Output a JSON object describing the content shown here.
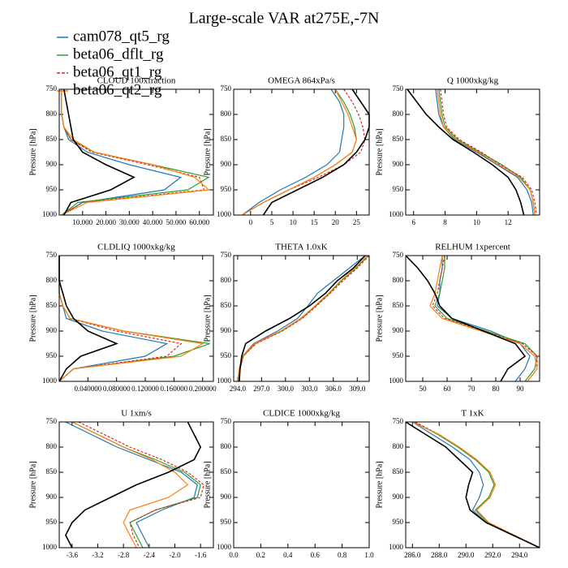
{
  "title": "Large-scale VAR at275E,-7N",
  "chart_data": [
    {
      "type": "line",
      "title": "CLOUD 100xfraction",
      "ylabel": "Pressure [hPa]",
      "y": [
        750,
        775,
        800,
        825,
        850,
        875,
        900,
        925,
        950,
        975,
        1000
      ],
      "ylim": [
        750,
        1000
      ],
      "yticks": [
        750,
        800,
        850,
        900,
        950,
        1000
      ],
      "xlim": [
        0,
        66
      ],
      "xticks": [
        {
          "value": 10,
          "label": "10.000"
        },
        {
          "value": 20,
          "label": "20.000"
        },
        {
          "value": 30,
          "label": "30.000"
        },
        {
          "value": 40,
          "label": "40.000"
        },
        {
          "value": 50,
          "label": "50.000"
        },
        {
          "value": 60,
          "label": "60.000"
        }
      ],
      "series": [
        {
          "name": "cam078_qt5_rg",
          "color": "#1f77b4",
          "values": [
            1,
            1,
            1,
            2,
            4,
            12,
            30,
            52,
            45,
            10,
            1
          ]
        },
        {
          "name": "beta06_dflt_rg",
          "color": "#2ca02c",
          "values": [
            1,
            1,
            1,
            2,
            5,
            15,
            40,
            64,
            55,
            8,
            1
          ]
        },
        {
          "name": "beta06_qt1_rg",
          "color": "#d62728",
          "dashed": true,
          "values": [
            1,
            1,
            1,
            2,
            5,
            14,
            38,
            60,
            62,
            10,
            1
          ]
        },
        {
          "name": "beta06_qt2_rg",
          "color": "#ff7f0e",
          "values": [
            1,
            1,
            1,
            2,
            6,
            15,
            40,
            58,
            64,
            12,
            1
          ]
        },
        {
          "color": "#000000",
          "values": [
            2,
            3,
            4,
            5,
            6,
            10,
            20,
            32,
            22,
            5,
            2
          ]
        }
      ]
    },
    {
      "type": "line",
      "title": "OMEGA 864xPa/s",
      "ylabel": "Pressure [hPa]",
      "y": [
        750,
        775,
        800,
        825,
        850,
        875,
        900,
        925,
        950,
        975,
        1000
      ],
      "ylim": [
        750,
        1000
      ],
      "yticks": [
        750,
        800,
        850,
        900,
        950,
        1000
      ],
      "xlim": [
        -4,
        28
      ],
      "xticks": [
        0,
        5,
        10,
        15,
        20,
        25
      ],
      "series": [
        {
          "name": "cam078_qt5_rg",
          "color": "#1f77b4",
          "values": [
            19,
            21,
            22,
            22,
            21.5,
            21,
            18,
            13,
            7,
            2,
            -2
          ]
        },
        {
          "name": "beta06_dflt_rg",
          "color": "#2ca02c",
          "values": [
            20,
            22,
            23.5,
            24.5,
            25,
            24,
            20,
            15,
            9,
            3,
            -2
          ]
        },
        {
          "name": "beta06_qt1_rg",
          "color": "#d62728",
          "dashed": true,
          "values": [
            22,
            24,
            25.5,
            26.5,
            27,
            26,
            22,
            16,
            9,
            3,
            -2
          ]
        },
        {
          "name": "beta06_qt2_rg",
          "color": "#ff7f0e",
          "values": [
            20,
            21.5,
            23,
            24,
            25,
            24,
            20,
            15,
            9,
            3,
            -2
          ]
        },
        {
          "color": "#000000",
          "values": [
            24,
            26,
            28,
            28,
            27,
            25,
            22,
            17,
            11,
            5,
            3
          ]
        }
      ]
    },
    {
      "type": "line",
      "title": "Q 1000xkg/kg",
      "ylabel": "Pressure [hPa]",
      "y": [
        750,
        775,
        800,
        825,
        850,
        875,
        900,
        925,
        950,
        975,
        1000
      ],
      "ylim": [
        750,
        1000
      ],
      "yticks": [
        750,
        800,
        850,
        900,
        950,
        1000
      ],
      "xlim": [
        5.5,
        14
      ],
      "xticks": [
        6,
        8,
        10,
        12
      ],
      "series": [
        {
          "name": "cam078_qt5_rg",
          "color": "#1f77b4",
          "values": [
            7.4,
            7.5,
            7.6,
            7.9,
            8.6,
            10,
            11.3,
            12.6,
            13.2,
            13.5,
            13.6
          ]
        },
        {
          "name": "beta06_dflt_rg",
          "color": "#2ca02c",
          "values": [
            7.6,
            7.7,
            7.8,
            8,
            8.8,
            10.2,
            11.6,
            12.8,
            13.4,
            13.6,
            13.7
          ]
        },
        {
          "name": "beta06_qt1_rg",
          "color": "#d62728",
          "dashed": true,
          "values": [
            7.7,
            7.8,
            7.9,
            8.1,
            8.9,
            10.3,
            11.5,
            12.9,
            13.5,
            13.7,
            13.8
          ]
        },
        {
          "name": "beta06_qt2_rg",
          "color": "#ff7f0e",
          "values": [
            7.5,
            7.6,
            7.7,
            7.9,
            8.7,
            10.1,
            11.4,
            12.7,
            13.4,
            13.6,
            13.7
          ]
        },
        {
          "color": "#000000",
          "values": [
            5.6,
            6.2,
            6.8,
            7.6,
            8.5,
            9.8,
            11,
            12,
            12.5,
            12.8,
            13
          ]
        }
      ]
    },
    {
      "type": "line",
      "title": "CLDLIQ 1000xkg/kg",
      "ylabel": "Pressure [hPa]",
      "y": [
        750,
        775,
        800,
        825,
        850,
        875,
        900,
        925,
        950,
        975,
        1000
      ],
      "ylim": [
        750,
        1000
      ],
      "yticks": [
        750,
        800,
        850,
        900,
        950,
        1000
      ],
      "xlim": [
        0,
        0.215
      ],
      "xticks": [
        {
          "value": 0.04,
          "label": "0.040000"
        },
        {
          "value": 0.08,
          "label": "0.080000"
        },
        {
          "value": 0.12,
          "label": "0.120000"
        },
        {
          "value": 0.16,
          "label": "0.160000"
        },
        {
          "value": 0.2,
          "label": "0.200000"
        }
      ],
      "series": [
        {
          "name": "cam078_qt5_rg",
          "color": "#1f77b4",
          "values": [
            0,
            0,
            0,
            0,
            0.005,
            0.01,
            0.06,
            0.15,
            0.12,
            0.02,
            0
          ]
        },
        {
          "name": "beta06_dflt_rg",
          "color": "#2ca02c",
          "values": [
            0,
            0,
            0,
            0,
            0.005,
            0.015,
            0.09,
            0.21,
            0.16,
            0.02,
            0
          ]
        },
        {
          "name": "beta06_qt1_rg",
          "color": "#d62728",
          "dashed": true,
          "values": [
            0,
            0,
            0,
            0,
            0.005,
            0.015,
            0.08,
            0.17,
            0.15,
            0.02,
            0
          ]
        },
        {
          "name": "beta06_qt2_rg",
          "color": "#ff7f0e",
          "values": [
            0,
            0,
            0,
            0,
            0.005,
            0.015,
            0.09,
            0.2,
            0.17,
            0.02,
            0
          ]
        },
        {
          "color": "#000000",
          "values": [
            0,
            0,
            0,
            0.005,
            0.01,
            0.02,
            0.04,
            0.08,
            0.03,
            0.01,
            0
          ]
        }
      ]
    },
    {
      "type": "line",
      "title": "THETA 1.0xK",
      "ylabel": "Pressure [hPa]",
      "y": [
        750,
        775,
        800,
        825,
        850,
        875,
        900,
        925,
        950,
        975,
        1000
      ],
      "ylim": [
        750,
        1000
      ],
      "yticks": [
        750,
        800,
        850,
        900,
        950,
        1000
      ],
      "xlim": [
        293.5,
        310.5
      ],
      "xticks": [
        {
          "value": 294,
          "label": "294.0"
        },
        {
          "value": 297,
          "label": "297.0"
        },
        {
          "value": 300,
          "label": "300.0"
        },
        {
          "value": 303,
          "label": "303.0"
        },
        {
          "value": 306,
          "label": "306.0"
        },
        {
          "value": 309,
          "label": "309.0"
        }
      ],
      "series": [
        {
          "name": "cam078_qt5_rg",
          "color": "#1f77b4",
          "values": [
            310,
            308,
            306,
            304,
            302.8,
            301.5,
            299,
            296,
            294.6,
            294.2,
            294
          ]
        },
        {
          "name": "beta06_dflt_rg",
          "color": "#2ca02c",
          "values": [
            310.4,
            308.8,
            307,
            305.5,
            303.8,
            302,
            299.5,
            296.2,
            294.7,
            294.3,
            294.1
          ]
        },
        {
          "name": "beta06_qt1_rg",
          "color": "#d62728",
          "dashed": true,
          "values": [
            310.5,
            309,
            307.2,
            305.6,
            303.9,
            302.1,
            299.6,
            296.3,
            294.7,
            294.3,
            294.1
          ]
        },
        {
          "name": "beta06_qt2_rg",
          "color": "#ff7f0e",
          "values": [
            310.3,
            308.7,
            306.9,
            305.4,
            303.7,
            301.9,
            299.4,
            296.1,
            294.6,
            294.2,
            294
          ]
        },
        {
          "color": "#000000",
          "values": [
            310,
            308.5,
            306.5,
            305,
            303,
            300.5,
            297.5,
            295,
            294.5,
            294.3,
            294.2
          ]
        }
      ]
    },
    {
      "type": "line",
      "title": "RELHUM 1xpercent",
      "ylabel": "Pressure [hPa]",
      "y": [
        750,
        775,
        800,
        825,
        850,
        875,
        900,
        925,
        950,
        975,
        1000
      ],
      "ylim": [
        750,
        1000
      ],
      "yticks": [
        750,
        800,
        850,
        900,
        950,
        1000
      ],
      "xlim": [
        43,
        98
      ],
      "xticks": [
        50,
        60,
        70,
        80,
        90
      ],
      "series": [
        {
          "name": "cam078_qt5_rg",
          "color": "#1f77b4",
          "values": [
            58,
            58,
            57,
            57,
            56,
            62,
            78,
            90,
            94,
            92,
            88
          ]
        },
        {
          "name": "beta06_dflt_rg",
          "color": "#2ca02c",
          "values": [
            59,
            59,
            58,
            57,
            55,
            60,
            76,
            92,
            97,
            96,
            92
          ]
        },
        {
          "name": "beta06_qt1_rg",
          "color": "#d62728",
          "dashed": true,
          "values": [
            59,
            58,
            57,
            56,
            54,
            59,
            75,
            91,
            97,
            97,
            93
          ]
        },
        {
          "name": "beta06_qt2_rg",
          "color": "#ff7f0e",
          "values": [
            58,
            57,
            56,
            55,
            53,
            58,
            74,
            90,
            96,
            97,
            93
          ]
        },
        {
          "color": "#000000",
          "values": [
            43,
            48,
            52,
            55,
            57,
            62,
            75,
            88,
            92,
            85,
            82
          ]
        }
      ]
    },
    {
      "type": "line",
      "title": "U 1xm/s",
      "ylabel": "Pressure [hPa]",
      "y": [
        750,
        775,
        800,
        825,
        850,
        875,
        900,
        925,
        950,
        975,
        1000
      ],
      "ylim": [
        750,
        1000
      ],
      "yticks": [
        750,
        800,
        850,
        900,
        950,
        1000
      ],
      "xlim": [
        -3.8,
        -1.4
      ],
      "xticks": [
        -3.6,
        -3.2,
        -2.8,
        -2.4,
        {
          "value": -2,
          "label": "-2.0"
        },
        -1.6
      ],
      "series": [
        {
          "name": "cam078_qt5_rg",
          "color": "#1f77b4",
          "values": [
            -3.7,
            -3.3,
            -2.9,
            -2.4,
            -1.9,
            -1.65,
            -1.7,
            -2.2,
            -2.6,
            -2.5,
            -2.4
          ]
        },
        {
          "name": "beta06_dflt_rg",
          "color": "#2ca02c",
          "values": [
            -3.6,
            -3.2,
            -2.8,
            -2.3,
            -1.85,
            -1.6,
            -1.65,
            -2.3,
            -2.7,
            -2.6,
            -2.5
          ]
        },
        {
          "name": "beta06_qt1_rg",
          "color": "#d62728",
          "dashed": true,
          "values": [
            -3.5,
            -3.1,
            -2.7,
            -2.2,
            -1.8,
            -1.55,
            -1.6,
            -2.3,
            -2.7,
            -2.65,
            -2.55
          ]
        },
        {
          "name": "beta06_qt2_rg",
          "color": "#ff7f0e",
          "values": [
            -3.6,
            -3.2,
            -2.8,
            -2.35,
            -2,
            -1.8,
            -2.1,
            -2.7,
            -2.8,
            -2.7,
            -2.6
          ]
        },
        {
          "color": "#000000",
          "values": [
            -1.8,
            -1.7,
            -1.6,
            -1.7,
            -2.1,
            -2.6,
            -3,
            -3.4,
            -3.6,
            -3.7,
            -3.6
          ]
        }
      ]
    },
    {
      "type": "line",
      "title": "CLDICE 1000xkg/kg",
      "ylabel": "Pressure [hPa]",
      "y": [
        750,
        775,
        800,
        825,
        850,
        875,
        900,
        925,
        950,
        975,
        1000
      ],
      "ylim": [
        750,
        1000
      ],
      "yticks": [
        750,
        800,
        850,
        900,
        950,
        1000
      ],
      "xlim": [
        0,
        1
      ],
      "xticks": [
        {
          "value": 0,
          "label": "0.0"
        },
        {
          "value": 0.2,
          "label": "0.2"
        },
        {
          "value": 0.4,
          "label": "0.4"
        },
        {
          "value": 0.6,
          "label": "0.6"
        },
        {
          "value": 0.8,
          "label": "0.8"
        },
        {
          "value": 1,
          "label": "1.0"
        }
      ],
      "series": []
    },
    {
      "type": "line",
      "title": "T 1xK",
      "ylabel": "Pressure [hPa]",
      "y": [
        750,
        775,
        800,
        825,
        850,
        875,
        900,
        925,
        950,
        975,
        1000
      ],
      "ylim": [
        750,
        1000
      ],
      "yticks": [
        750,
        800,
        850,
        900,
        950,
        1000
      ],
      "xlim": [
        285.5,
        295.5
      ],
      "xticks": [
        {
          "value": 286,
          "label": "286.0"
        },
        {
          "value": 288,
          "label": "288.0"
        },
        {
          "value": 290,
          "label": "290.0"
        },
        {
          "value": 292,
          "label": "292.0"
        },
        {
          "value": 294,
          "label": "294.0"
        }
      ],
      "series": [
        {
          "name": "cam078_qt5_rg",
          "color": "#1f77b4",
          "values": [
            286,
            287.5,
            289,
            290.3,
            291,
            291.3,
            291,
            290.5,
            291.5,
            293.5,
            295.5
          ]
        },
        {
          "name": "beta06_dflt_rg",
          "color": "#2ca02c",
          "values": [
            286.1,
            287.9,
            289.4,
            290.7,
            291.7,
            292.1,
            291.7,
            290.7,
            291.6,
            293.6,
            295.5
          ]
        },
        {
          "name": "beta06_qt1_rg",
          "color": "#d62728",
          "dashed": true,
          "values": [
            286.2,
            288,
            289.5,
            290.8,
            291.8,
            292.2,
            291.8,
            290.8,
            291.7,
            293.6,
            295.5
          ]
        },
        {
          "name": "beta06_qt2_rg",
          "color": "#ff7f0e",
          "values": [
            286,
            288,
            289.5,
            290.8,
            291.8,
            292.2,
            291.8,
            290.8,
            291.7,
            293.6,
            295.5
          ]
        },
        {
          "color": "#000000",
          "values": [
            285.5,
            287,
            288.5,
            289.5,
            290.5,
            290.2,
            290,
            290.3,
            291.5,
            293.5,
            295.5
          ]
        }
      ]
    }
  ]
}
